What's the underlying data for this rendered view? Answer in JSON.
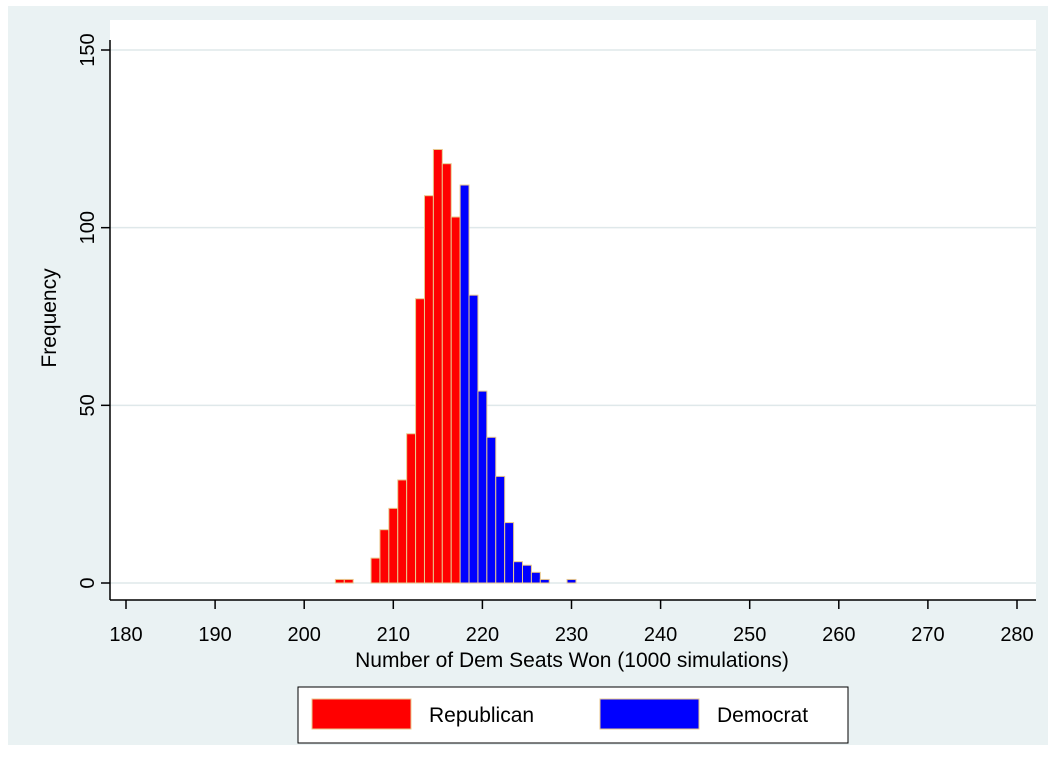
{
  "chart_data": {
    "type": "bar",
    "subtype": "histogram",
    "xlabel": "Number of Dem Seats Won (1000 simulations)",
    "ylabel": "Frequency",
    "xlim": [
      178,
      282
    ],
    "ylim": [
      0,
      150
    ],
    "xticks": [
      "180",
      "190",
      "200",
      "210",
      "220",
      "230",
      "240",
      "250",
      "260",
      "270",
      "280"
    ],
    "yticks": [
      "0",
      "50",
      "100",
      "150"
    ],
    "grid": "horizontal",
    "legend": {
      "position": "bottom"
    },
    "series": [
      {
        "name": "Republican",
        "color": "#ff0000",
        "x": [
          204,
          205,
          208,
          209,
          210,
          211,
          212,
          213,
          214,
          215,
          216,
          217
        ],
        "values": [
          1,
          1,
          7,
          15,
          21,
          29,
          42,
          80,
          109,
          122,
          118,
          103
        ]
      },
      {
        "name": "Democrat",
        "color": "#0000ff",
        "x": [
          218,
          219,
          220,
          221,
          222,
          223,
          224,
          225,
          226,
          227,
          230
        ],
        "values": [
          112,
          81,
          54,
          41,
          30,
          17,
          6,
          5,
          3,
          1,
          1
        ]
      }
    ]
  },
  "colors": {
    "plot_background": "#eaf2f3",
    "bar_outline": "#e8c88e",
    "gridline": "#dfe8ea"
  }
}
